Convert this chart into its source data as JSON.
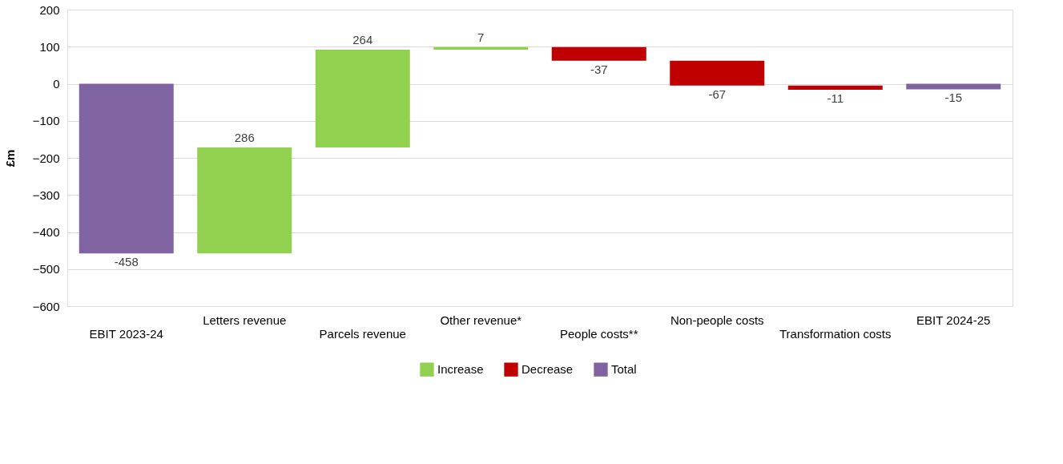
{
  "chart_data": {
    "type": "bar",
    "ylabel": "£m",
    "categories": [
      "EBIT 2023-24",
      "Letters revenue",
      "Parcels revenue",
      "Other revenue*",
      "People costs**",
      "Non-people costs",
      "Transformation costs",
      "EBIT 2024-25"
    ],
    "series": [
      {
        "name": "Increase",
        "color": "#92d050",
        "values": [
          null,
          286,
          264,
          7,
          null,
          null,
          null,
          null
        ],
        "base": [
          null,
          -458,
          -172,
          92,
          null,
          null,
          null,
          null
        ]
      },
      {
        "name": "Decrease",
        "color": "#c00000",
        "values": [
          null,
          null,
          null,
          null,
          -37,
          -67,
          -11,
          null
        ],
        "base": [
          null,
          null,
          null,
          null,
          99,
          62,
          -5,
          null
        ]
      },
      {
        "name": "Total",
        "color": "#8064a2",
        "values": [
          -458,
          null,
          null,
          null,
          null,
          null,
          null,
          -15
        ],
        "base": [
          0,
          null,
          null,
          null,
          null,
          null,
          null,
          0
        ]
      }
    ],
    "ylim": [
      -600,
      200
    ],
    "yticks": [
      -600,
      -500,
      -400,
      -300,
      -200,
      -100,
      0,
      100,
      200
    ],
    "grid": "y",
    "legend": "bottom",
    "data_labels": true
  }
}
